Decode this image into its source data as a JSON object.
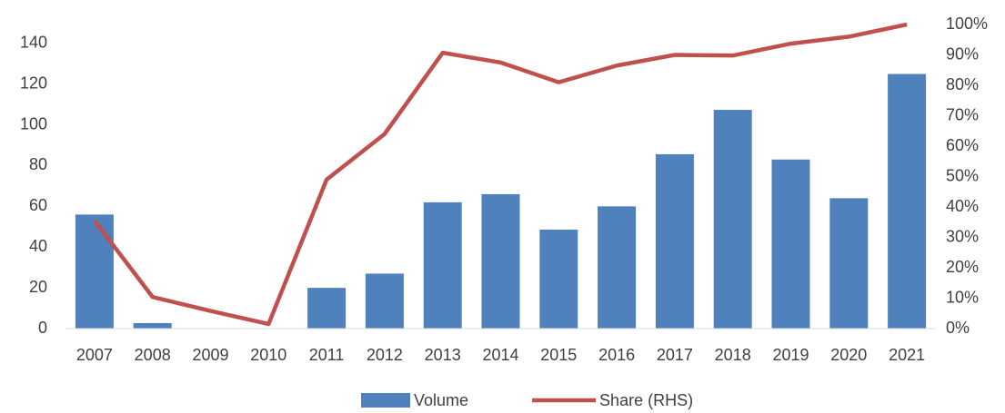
{
  "chart_data": {
    "type": "bar_line",
    "categories": [
      "2007",
      "2008",
      "2009",
      "2010",
      "2011",
      "2012",
      "2013",
      "2014",
      "2015",
      "2016",
      "2017",
      "2018",
      "2019",
      "2020",
      "2021"
    ],
    "series": [
      {
        "name": "Volume",
        "type": "bar",
        "color": "#4f81bd",
        "values": [
          56,
          2.7,
          0,
          0,
          20,
          27,
          62,
          66,
          48.6,
          60,
          85.6,
          107.4,
          83,
          64,
          125
        ]
      },
      {
        "name": "Share (RHS)",
        "type": "line",
        "axis": "y2",
        "color": "#c0504d",
        "values": [
          35.5,
          10.4,
          5.8,
          1.5,
          49,
          64,
          90.7,
          87.5,
          81,
          86.5,
          90,
          89.8,
          93.7,
          96,
          100
        ]
      }
    ],
    "ylim": [
      0,
      149.3
    ],
    "yticks": [
      0,
      20,
      40,
      60,
      80,
      100,
      120,
      140
    ],
    "y2lim": [
      0,
      100
    ],
    "y2ticks": [
      {
        "value": 0,
        "label": "0%"
      },
      {
        "value": 10,
        "label": "10%"
      },
      {
        "value": 20,
        "label": "20%"
      },
      {
        "value": 30,
        "label": "30%"
      },
      {
        "value": 40,
        "label": "40%"
      },
      {
        "value": 50,
        "label": "50%"
      },
      {
        "value": 60,
        "label": "60%"
      },
      {
        "value": 70,
        "label": "70%"
      },
      {
        "value": 80,
        "label": "80%"
      },
      {
        "value": 90,
        "label": "90%"
      },
      {
        "value": 100,
        "label": "100%"
      }
    ],
    "grid": false,
    "legend": "bottom"
  }
}
